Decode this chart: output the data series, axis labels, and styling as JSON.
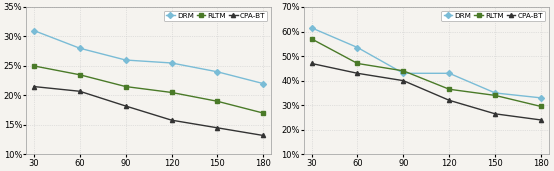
{
  "x": [
    30,
    60,
    90,
    120,
    150,
    180
  ],
  "left": {
    "DRM": [
      0.31,
      0.28,
      0.26,
      0.255,
      0.24,
      0.22
    ],
    "RLTM": [
      0.25,
      0.235,
      0.215,
      0.205,
      0.19,
      0.17
    ],
    "CPA-BT": [
      0.215,
      0.207,
      0.182,
      0.158,
      0.145,
      0.132
    ]
  },
  "right": {
    "DRM": [
      0.615,
      0.535,
      0.43,
      0.43,
      0.35,
      0.33
    ],
    "RLTM": [
      0.57,
      0.47,
      0.44,
      0.365,
      0.34,
      0.295
    ],
    "CPA-BT": [
      0.47,
      0.43,
      0.4,
      0.32,
      0.265,
      0.24
    ]
  },
  "left_ylim": [
    0.1,
    0.35
  ],
  "left_yticks": [
    0.1,
    0.15,
    0.2,
    0.25,
    0.3,
    0.35
  ],
  "right_ylim": [
    0.1,
    0.7
  ],
  "right_yticks": [
    0.1,
    0.2,
    0.3,
    0.4,
    0.5,
    0.6,
    0.7
  ],
  "colors": {
    "DRM": "#7abcd6",
    "RLTM": "#4a7a28",
    "CPA-BT": "#333333"
  },
  "markers": {
    "DRM": "D",
    "RLTM": "s",
    "CPA-BT": "^"
  },
  "bg_color": "#f5f3ef",
  "plot_bg": "#f5f3ef",
  "grid_color": "#cccccc",
  "legend_keys": [
    "DRM",
    "RLTM",
    "CPA-BT"
  ]
}
